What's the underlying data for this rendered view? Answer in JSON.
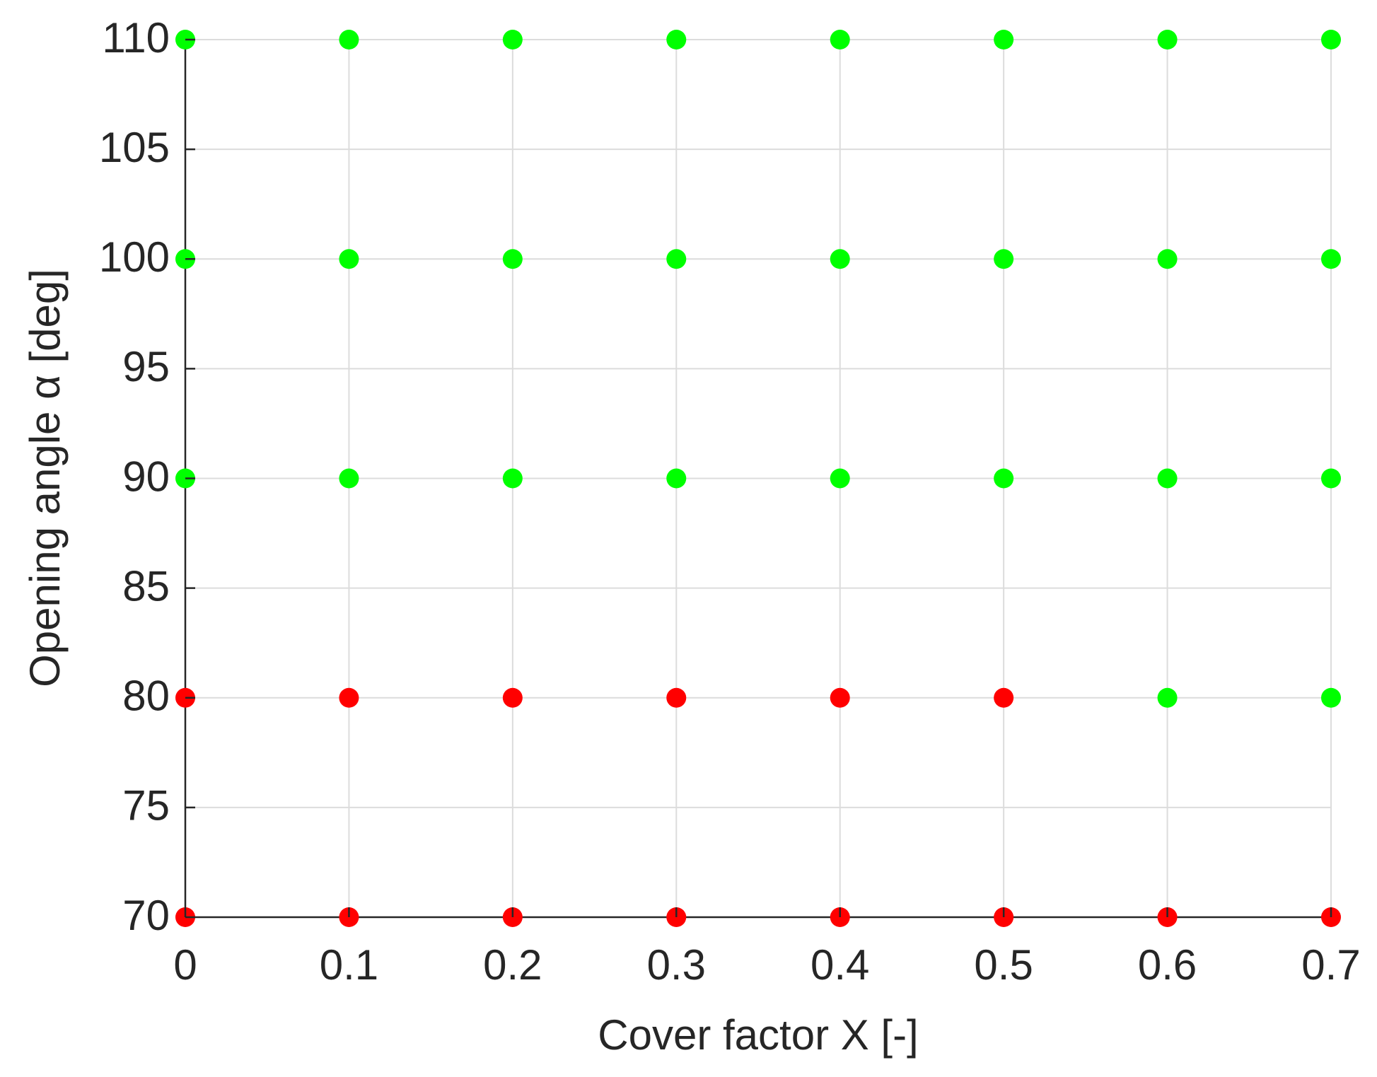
{
  "chart_data": {
    "type": "scatter",
    "xlabel": "Cover factor X [-]",
    "ylabel": "Opening angle α [deg]",
    "xlim": [
      0,
      0.7
    ],
    "ylim": [
      70,
      110
    ],
    "xticks": [
      0,
      0.1,
      0.2,
      0.3,
      0.4,
      0.5,
      0.6,
      0.7
    ],
    "yticks": [
      70,
      75,
      80,
      85,
      90,
      95,
      100,
      105,
      110
    ],
    "grid": true,
    "series": [
      {
        "color": "#00ff00",
        "x": [
          0,
          0.1,
          0.2,
          0.3,
          0.4,
          0.5,
          0.6,
          0.7,
          0,
          0.1,
          0.2,
          0.3,
          0.4,
          0.5,
          0.6,
          0.7,
          0,
          0.1,
          0.2,
          0.3,
          0.4,
          0.5,
          0.6,
          0.7,
          0.6,
          0.7
        ],
        "values": [
          110,
          110,
          110,
          110,
          110,
          110,
          110,
          110,
          100,
          100,
          100,
          100,
          100,
          100,
          100,
          100,
          90,
          90,
          90,
          90,
          90,
          90,
          90,
          90,
          80,
          80
        ]
      },
      {
        "color": "#ff0000",
        "x": [
          0,
          0.1,
          0.2,
          0.3,
          0.4,
          0.5,
          0,
          0.1,
          0.2,
          0.3,
          0.4,
          0.5,
          0.6,
          0.7
        ],
        "values": [
          80,
          80,
          80,
          80,
          80,
          80,
          70,
          70,
          70,
          70,
          70,
          70,
          70,
          70
        ]
      }
    ]
  }
}
